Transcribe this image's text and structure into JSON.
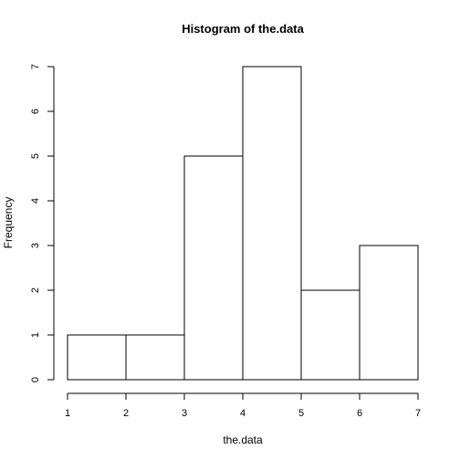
{
  "chart_data": {
    "type": "bar",
    "title": "Histogram of the.data",
    "xlabel": "the.data",
    "ylabel": "Frequency",
    "bins": [
      {
        "from": 1,
        "to": 2,
        "count": 1
      },
      {
        "from": 2,
        "to": 3,
        "count": 1
      },
      {
        "from": 3,
        "to": 4,
        "count": 5
      },
      {
        "from": 4,
        "to": 5,
        "count": 7
      },
      {
        "from": 5,
        "to": 6,
        "count": 2
      },
      {
        "from": 6,
        "to": 7,
        "count": 3
      }
    ],
    "xlim": [
      1,
      7
    ],
    "ylim": [
      0,
      7
    ],
    "x_ticks": [
      "1",
      "2",
      "3",
      "4",
      "5",
      "6",
      "7"
    ],
    "y_ticks": [
      "0",
      "1",
      "2",
      "3",
      "4",
      "5",
      "6",
      "7"
    ],
    "grid": false,
    "bar_fill": "#ffffff",
    "bar_stroke": "#000000"
  }
}
